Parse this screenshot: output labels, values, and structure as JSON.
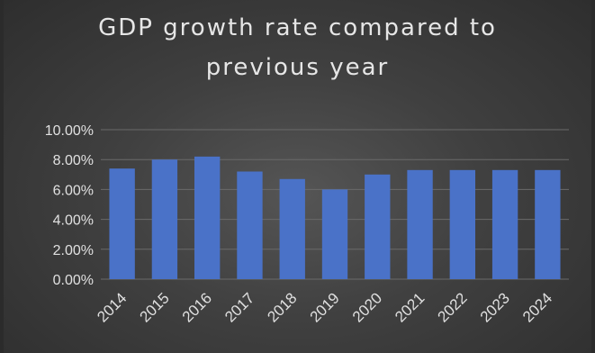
{
  "chart_data": {
    "type": "bar",
    "title_lines": [
      "GDP growth rate compared to",
      "previous year"
    ],
    "categories": [
      "2014",
      "2015",
      "2016",
      "2017",
      "2018",
      "2019",
      "2020",
      "2021",
      "2022",
      "2023",
      "2024"
    ],
    "values": [
      7.4,
      8.0,
      8.2,
      7.2,
      6.7,
      6.0,
      7.0,
      7.3,
      7.3,
      7.3,
      7.3
    ],
    "ylim": [
      0,
      10
    ],
    "y_ticks": [
      "0.00%",
      "2.00%",
      "4.00%",
      "6.00%",
      "8.00%",
      "10.00%"
    ],
    "grid": true,
    "bar_color": "#4a72c8",
    "grid_color": "#6a6a6a",
    "text_color": "#e0e0e0"
  }
}
